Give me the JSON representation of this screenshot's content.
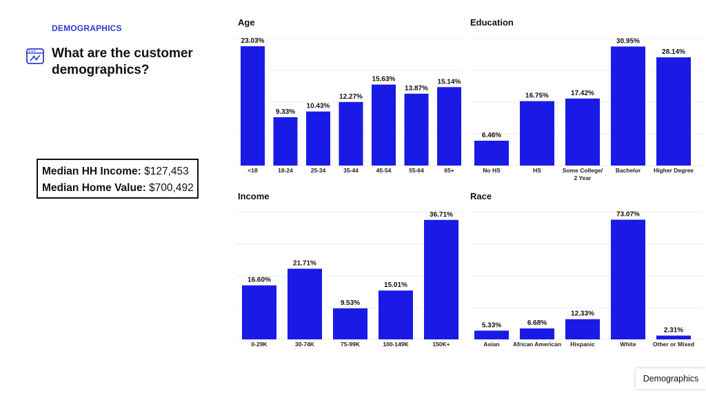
{
  "section_label": "DEMOGRAPHICS",
  "heading": "What are the customer demographics?",
  "stats": {
    "income_label": "Median HH Income:",
    "income_value": "$127,453",
    "home_label": "Median Home Value:",
    "home_value": "$700,492"
  },
  "footer_tab": "Demographics",
  "colors": {
    "bar": "#1a1ae6",
    "accent": "#2a3bd6"
  },
  "chart_data": [
    {
      "type": "bar",
      "title": "Age",
      "categories": [
        "<18",
        "18-24",
        "25-34",
        "35-44",
        "45-54",
        "55-64",
        "65+"
      ],
      "values": [
        23.03,
        9.33,
        10.43,
        12.27,
        15.63,
        13.87,
        15.14
      ],
      "labels": [
        "23.03%",
        "9.33%",
        "10.43%",
        "12.27%",
        "15.63%",
        "13.87%",
        "15.14%"
      ],
      "ylim": [
        0,
        24.5
      ]
    },
    {
      "type": "bar",
      "title": "Education",
      "categories": [
        "No HS",
        "HS",
        "Some College/ 2 Year",
        "Bachelor",
        "Higher Degree"
      ],
      "values": [
        6.46,
        16.75,
        17.42,
        30.95,
        28.14
      ],
      "labels": [
        "6.46%",
        "16.75%",
        "17.42%",
        "30.95%",
        "28.14%"
      ],
      "ylim": [
        0,
        33
      ]
    },
    {
      "type": "bar",
      "title": "Income",
      "categories": [
        "0-29K",
        "30-74K",
        "75-99K",
        "100-149K",
        "150K+"
      ],
      "values": [
        16.6,
        21.71,
        9.53,
        15.01,
        36.71
      ],
      "labels": [
        "16.60%",
        "21.71%",
        "9.53%",
        "15.01%",
        "36.71%"
      ],
      "ylim": [
        0,
        39
      ]
    },
    {
      "type": "bar",
      "title": "Race",
      "categories": [
        "Asian",
        "African American",
        "Hispanic",
        "White",
        "Other or Mixed"
      ],
      "values": [
        5.33,
        6.68,
        12.33,
        73.07,
        2.31
      ],
      "labels": [
        "5.33%",
        "6.68%",
        "12.33%",
        "73.07%",
        "2.31%"
      ],
      "ylim": [
        0,
        77.5
      ]
    }
  ]
}
